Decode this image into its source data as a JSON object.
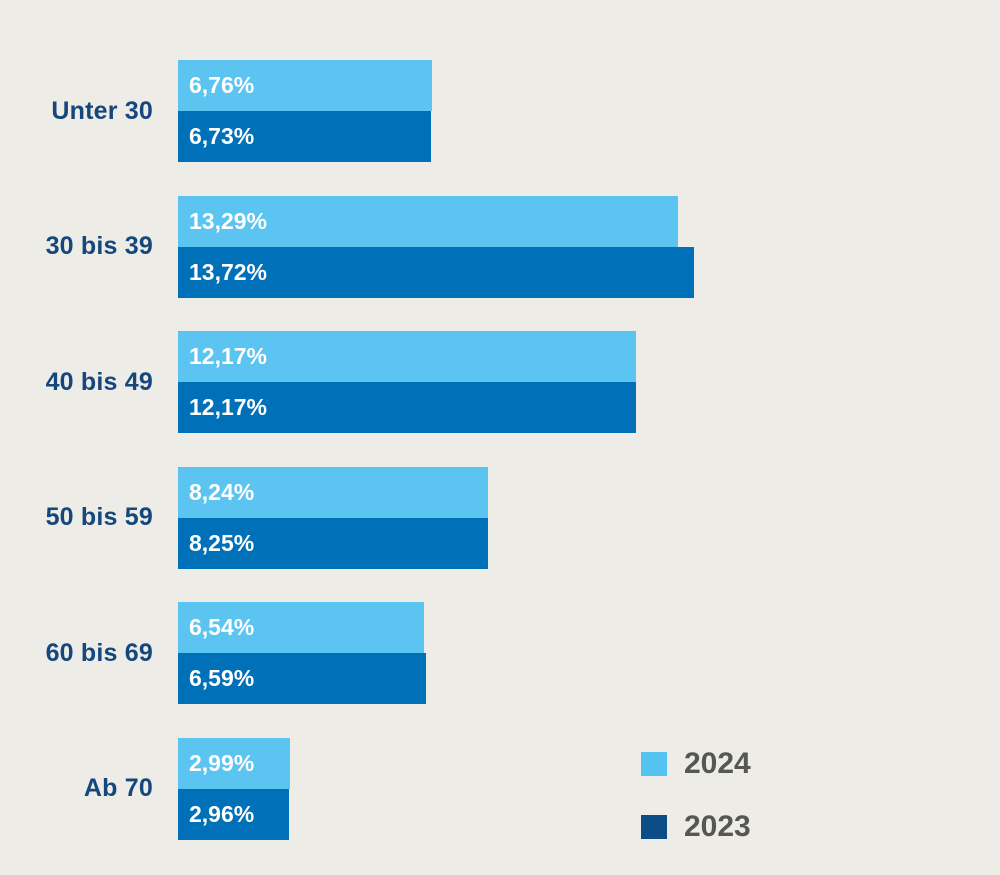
{
  "background_color": "#EDECE6",
  "chart_data": {
    "type": "bar",
    "orientation": "horizontal",
    "title": "",
    "xlabel": "",
    "ylabel": "",
    "value_format": "percent, German decimal comma",
    "grid": false,
    "axis_ticks_visible": false,
    "legend_position": "bottom-right",
    "categories": [
      "Unter 30",
      "30 bis 39",
      "40 bis 49",
      "50 bis 59",
      "60 bis 69",
      "Ab 70"
    ],
    "series": [
      {
        "name": "2024",
        "bar_color": "#5BC4F0",
        "legend_swatch_color": "#55C3F2",
        "values": [
          6.76,
          13.29,
          12.17,
          8.24,
          6.54,
          2.99
        ],
        "value_labels": [
          "6,76%",
          "13,29%",
          "12,17%",
          "8,24%",
          "6,54%",
          "2,99%"
        ]
      },
      {
        "name": "2023",
        "bar_color": "#0070B8",
        "legend_swatch_color": "#0C4D87",
        "values": [
          6.73,
          13.72,
          12.17,
          8.25,
          6.59,
          2.96
        ],
        "value_labels": [
          "6,73%",
          "13,72%",
          "12,17%",
          "8,25%",
          "6,59%",
          "2,96%"
        ]
      }
    ],
    "xlim_percent": [
      0,
      14
    ],
    "category_label_color": "#15477D",
    "value_label_color": "#FFFFFF",
    "legend_text_color": "#565655"
  }
}
